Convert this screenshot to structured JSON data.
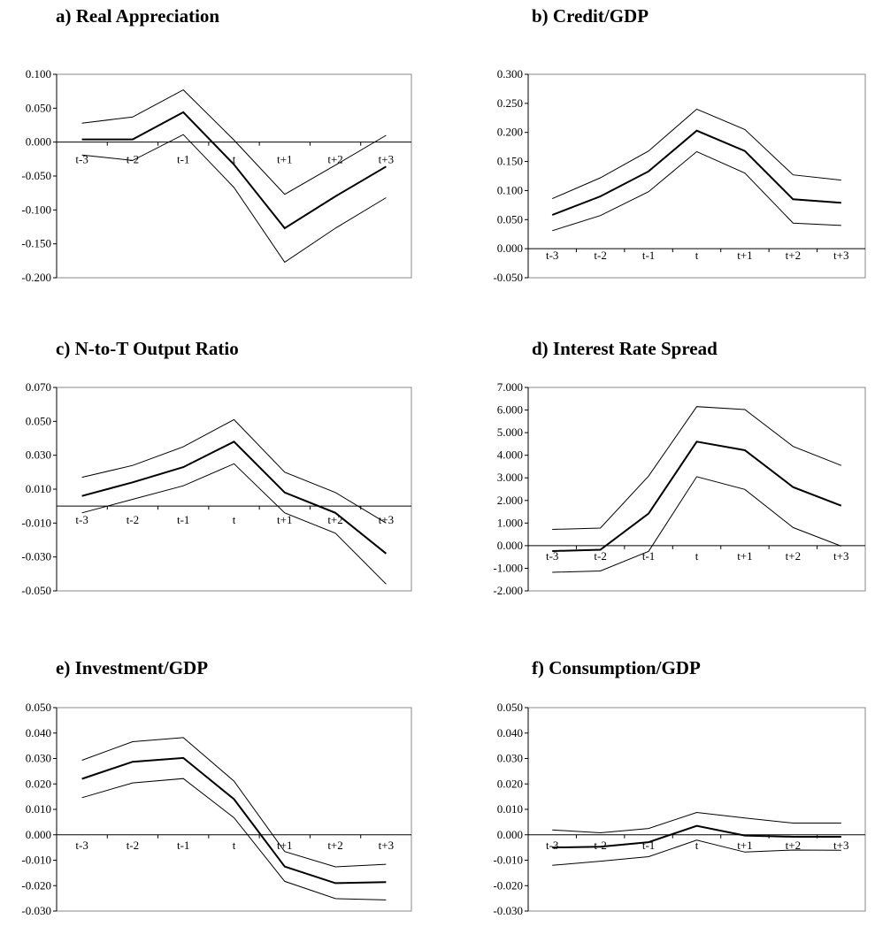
{
  "chart_data": [
    {
      "type": "line",
      "title": "a)  Real Appreciation",
      "categories": [
        "t-3",
        "t-2",
        "t-1",
        "t",
        "t+1",
        "t+2",
        "t+3"
      ],
      "ylim": [
        -0.2,
        0.1
      ],
      "yticks": [
        "0.100",
        "0.050",
        "0.000",
        "-0.050",
        "-0.100",
        "-0.150",
        "-0.200"
      ],
      "grid": false,
      "series": [
        {
          "values": [
            0.028,
            0.037,
            0.077,
            0.003,
            -0.077,
            -0.034,
            0.01
          ]
        },
        {
          "values": [
            0.004,
            0.004,
            0.044,
            -0.033,
            -0.127,
            -0.08,
            -0.036
          ]
        },
        {
          "values": [
            -0.019,
            -0.027,
            0.011,
            -0.067,
            -0.177,
            -0.127,
            -0.082
          ]
        }
      ]
    },
    {
      "type": "line",
      "title": "b) Credit/GDP",
      "categories": [
        "t-3",
        "t-2",
        "t-1",
        "t",
        "t+1",
        "t+2",
        "t+3"
      ],
      "ylim": [
        -0.05,
        0.3
      ],
      "yticks": [
        "0.300",
        "0.250",
        "0.200",
        "0.150",
        "0.100",
        "0.050",
        "0.000",
        "-0.050"
      ],
      "grid": false,
      "series": [
        {
          "values": [
            0.086,
            0.122,
            0.168,
            0.24,
            0.205,
            0.127,
            0.118
          ]
        },
        {
          "values": [
            0.058,
            0.09,
            0.133,
            0.203,
            0.168,
            0.085,
            0.079
          ]
        },
        {
          "values": [
            0.031,
            0.057,
            0.098,
            0.167,
            0.13,
            0.044,
            0.04
          ]
        }
      ]
    },
    {
      "type": "line",
      "title": "c)  N-to-T Output Ratio",
      "categories": [
        "t-3",
        "t-2",
        "t-1",
        "t",
        "t+1",
        "t+2",
        "t+3"
      ],
      "ylim": [
        -0.05,
        0.07
      ],
      "yticks": [
        "0.070",
        "0.050",
        "0.030",
        "0.010",
        "-0.010",
        "-0.030",
        "-0.050"
      ],
      "grid": false,
      "series": [
        {
          "values": [
            0.017,
            0.024,
            0.035,
            0.051,
            0.02,
            0.008,
            -0.01
          ]
        },
        {
          "values": [
            0.006,
            0.014,
            0.023,
            0.038,
            0.008,
            -0.004,
            -0.028
          ]
        },
        {
          "values": [
            -0.004,
            0.004,
            0.012,
            0.025,
            -0.004,
            -0.016,
            -0.046
          ]
        }
      ]
    },
    {
      "type": "line",
      "title": "d) Interest Rate Spread",
      "categories": [
        "t-3",
        "t-2",
        "t-1",
        "t",
        "t+1",
        "t+2",
        "t+3"
      ],
      "ylim": [
        -2,
        7
      ],
      "yticks": [
        "7.000",
        "6.000",
        "5.000",
        "4.000",
        "3.000",
        "2.000",
        "1.000",
        "0.000",
        "-1.000",
        "-2.000"
      ],
      "grid": false,
      "series": [
        {
          "values": [
            0.72,
            0.78,
            3.08,
            6.15,
            6.02,
            4.39,
            3.55
          ]
        },
        {
          "values": [
            -0.24,
            -0.18,
            1.42,
            4.6,
            4.22,
            2.59,
            1.77
          ]
        },
        {
          "values": [
            -1.18,
            -1.12,
            -0.25,
            3.05,
            2.49,
            0.8,
            -0.02
          ]
        }
      ]
    },
    {
      "type": "line",
      "title": "e)  Investment/GDP",
      "categories": [
        "t-3",
        "t-2",
        "t-1",
        "t",
        "t+1",
        "t+2",
        "t+3"
      ],
      "ylim": [
        -0.03,
        0.05
      ],
      "yticks": [
        "0.050",
        "0.040",
        "0.030",
        "0.020",
        "0.010",
        "0.000",
        "-0.010",
        "-0.020",
        "-0.030"
      ],
      "grid": false,
      "series": [
        {
          "values": [
            0.0293,
            0.0366,
            0.0382,
            0.0211,
            -0.0066,
            -0.0126,
            -0.0116
          ]
        },
        {
          "values": [
            0.022,
            0.0287,
            0.0302,
            0.014,
            -0.0125,
            -0.019,
            -0.0186
          ]
        },
        {
          "values": [
            0.0146,
            0.0204,
            0.0221,
            0.0067,
            -0.0183,
            -0.0251,
            -0.0256
          ]
        }
      ]
    },
    {
      "type": "line",
      "title": "f) Consumption/GDP",
      "categories": [
        "t-3",
        "t-2",
        "t-1",
        "t",
        "t+1",
        "t+2",
        "t+3"
      ],
      "ylim": [
        -0.03,
        0.05
      ],
      "yticks": [
        "0.050",
        "0.040",
        "0.030",
        "0.020",
        "0.010",
        "0.000",
        "-0.010",
        "-0.020",
        "-0.030"
      ],
      "grid": false,
      "series": [
        {
          "values": [
            0.0019,
            0.0008,
            0.0025,
            0.0088,
            0.0066,
            0.0046,
            0.0046
          ]
        },
        {
          "values": [
            -0.005,
            -0.0047,
            -0.0029,
            0.0035,
            -0.0003,
            -0.0008,
            -0.0008
          ]
        },
        {
          "values": [
            -0.012,
            -0.0104,
            -0.0086,
            -0.0021,
            -0.0068,
            -0.006,
            -0.0061
          ]
        }
      ]
    }
  ]
}
